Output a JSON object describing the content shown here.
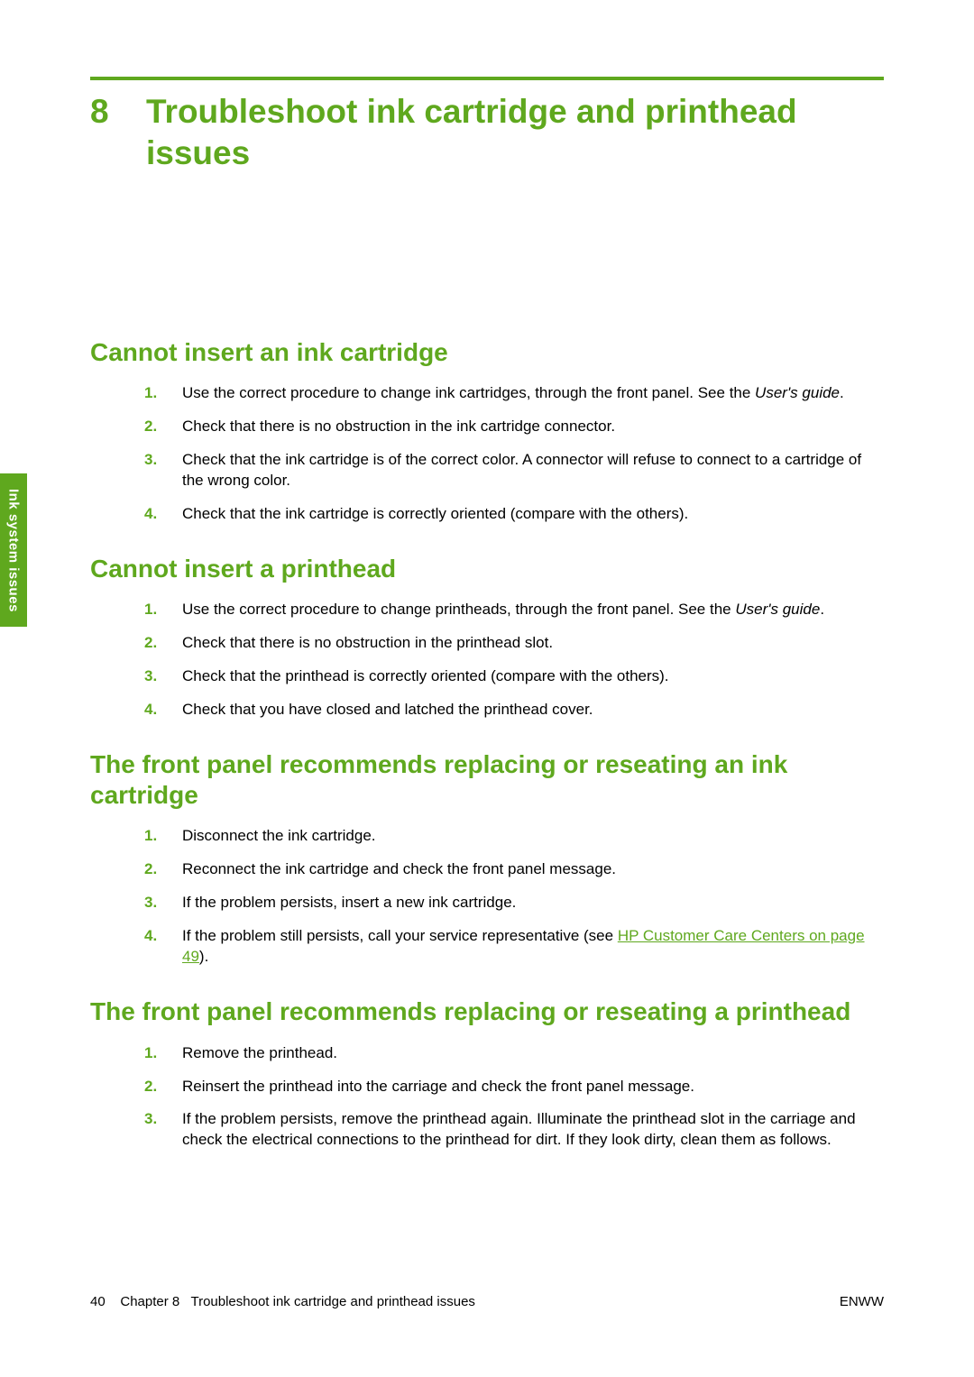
{
  "colors": {
    "accent": "#5fa81e",
    "text": "#000000",
    "background": "#ffffff"
  },
  "side_tab": "Ink system issues",
  "chapter": {
    "number": "8",
    "title": "Troubleshoot ink cartridge and printhead issues"
  },
  "sections": [
    {
      "heading": "Cannot insert an ink cartridge",
      "items": [
        {
          "n": "1.",
          "text_pre": "Use the correct procedure to change ink cartridges, through the front panel. See the ",
          "italic": "User's guide",
          "text_post": "."
        },
        {
          "n": "2.",
          "text": "Check that there is no obstruction in the ink cartridge connector."
        },
        {
          "n": "3.",
          "text": "Check that the ink cartridge is of the correct color. A connector will refuse to connect to a cartridge of the wrong color."
        },
        {
          "n": "4.",
          "text": "Check that the ink cartridge is correctly oriented (compare with the others)."
        }
      ]
    },
    {
      "heading": "Cannot insert a printhead",
      "items": [
        {
          "n": "1.",
          "text_pre": "Use the correct procedure to change printheads, through the front panel. See the ",
          "italic": "User's guide",
          "text_post": "."
        },
        {
          "n": "2.",
          "text": "Check that there is no obstruction in the printhead slot."
        },
        {
          "n": "3.",
          "text": "Check that the printhead is correctly oriented (compare with the others)."
        },
        {
          "n": "4.",
          "text": "Check that you have closed and latched the printhead cover."
        }
      ]
    },
    {
      "heading": "The front panel recommends replacing or reseating an ink cartridge",
      "items": [
        {
          "n": "1.",
          "text": "Disconnect the ink cartridge."
        },
        {
          "n": "2.",
          "text": "Reconnect the ink cartridge and check the front panel message."
        },
        {
          "n": "3.",
          "text": "If the problem persists, insert a new ink cartridge."
        },
        {
          "n": "4.",
          "text_pre": "If the problem still persists, call your service representative (see ",
          "link": "HP Customer Care Centers on page 49",
          "text_post": ")."
        }
      ]
    },
    {
      "heading": "The front panel recommends replacing or reseating a printhead",
      "items": [
        {
          "n": "1.",
          "text": "Remove the printhead."
        },
        {
          "n": "2.",
          "text": "Reinsert the printhead into the carriage and check the front panel message."
        },
        {
          "n": "3.",
          "text": "If the problem persists, remove the printhead again. Illuminate the printhead slot in the carriage and check the electrical connections to the printhead for dirt. If they look dirty, clean them as follows."
        }
      ]
    }
  ],
  "footer": {
    "page_number": "40",
    "chapter_label": "Chapter 8",
    "chapter_title": "Troubleshoot ink cartridge and printhead issues",
    "right": "ENWW"
  }
}
